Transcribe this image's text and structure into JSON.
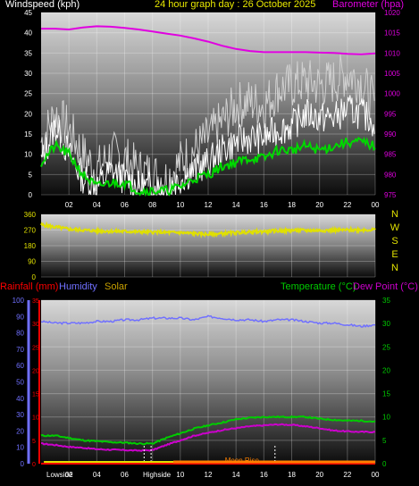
{
  "colors": {
    "wind": "#ffffff",
    "gust": "#d0d0d0",
    "avg_wind": "#00d800",
    "barometer": "#e000e0",
    "direction": "#e0e000",
    "rainfall": "#ff0000",
    "humidity": "#7070ff",
    "solar": "#c8a000",
    "temperature": "#00cc00",
    "dew_point": "#cc00cc",
    "moon": "#ff8000",
    "white_label": "#ffffff"
  },
  "header": {
    "wind_label": "Windspeed (kph)",
    "title": "24 hour graph day : 26 October 2025",
    "baro_label": "Barometer (hpa)"
  },
  "header3": {
    "rain_label": "Rainfall (mm)",
    "humidity_label": "Humidity",
    "solar_label": "Solar",
    "temp_label": "Temperature (°C)",
    "dew_label": "Dew Point (°C)"
  },
  "time_ticks": [
    "02",
    "04",
    "06",
    "08",
    "10",
    "12",
    "14",
    "16",
    "18",
    "20",
    "22",
    "00"
  ],
  "bottom_labels": {
    "lowside": "Lowside",
    "highside": "Highside",
    "moon_rise": "Moon Rise"
  },
  "chart_data": [
    {
      "type": "line",
      "title": "24 hour graph day : 26 October 2025",
      "x_hours": [
        0,
        1,
        2,
        3,
        4,
        5,
        6,
        7,
        8,
        9,
        10,
        11,
        12,
        13,
        14,
        15,
        16,
        17,
        18,
        19,
        20,
        21,
        22,
        23,
        24
      ],
      "left_axis": {
        "label": "Windspeed (kph)",
        "ylim": [
          0,
          45
        ],
        "ticks": [
          0,
          5,
          10,
          15,
          20,
          25,
          30,
          35,
          40,
          45
        ]
      },
      "right_axis": {
        "label": "Barometer (hpa)",
        "ylim": [
          975,
          1020
        ],
        "ticks": [
          975,
          980,
          985,
          990,
          995,
          1000,
          1005,
          1010,
          1015,
          1020
        ]
      },
      "series": [
        {
          "name": "Windspeed (kph)",
          "axis": "left",
          "values": [
            8,
            17,
            10,
            4,
            2,
            6,
            4,
            2,
            2,
            1,
            4,
            6,
            8,
            11,
            13,
            14,
            14,
            16,
            17,
            20,
            19,
            19,
            21,
            20,
            18
          ]
        },
        {
          "axis": "left",
          "values": [
            13,
            20,
            16,
            10,
            6,
            10,
            9,
            6,
            5,
            4,
            8,
            11,
            14,
            18,
            22,
            23,
            22,
            26,
            27,
            28,
            27,
            28,
            30,
            28,
            22
          ]
        },
        {
          "axis": "left",
          "values": [
            8,
            12,
            10,
            5,
            2,
            3,
            3,
            1,
            1,
            1,
            2,
            4,
            5,
            7,
            8,
            9,
            9,
            11,
            11,
            12,
            11,
            12,
            13,
            13,
            12
          ]
        },
        {
          "name": "Barometer (hpa)",
          "axis": "right",
          "values": [
            1016,
            1016,
            1015.8,
            1016.3,
            1016.6,
            1016.5,
            1016.2,
            1015.8,
            1015.3,
            1014.8,
            1014.3,
            1013.6,
            1012.8,
            1011.8,
            1011.0,
            1010.5,
            1010.2,
            1010.2,
            1010.2,
            1010.2,
            1010.1,
            1010.0,
            1009.8,
            1009.7,
            1009.9
          ]
        }
      ]
    },
    {
      "type": "line",
      "side_labels": [
        "N",
        "W",
        "S",
        "E",
        "N"
      ],
      "x_hours": [
        0,
        2,
        4,
        6,
        8,
        10,
        12,
        14,
        16,
        18,
        20,
        22,
        24
      ],
      "left_axis": {
        "ylim": [
          0,
          360
        ],
        "ticks": [
          0,
          90,
          180,
          270,
          360
        ]
      },
      "series": [
        {
          "axis": "left",
          "values": [
            300,
            275,
            265,
            262,
            258,
            255,
            245,
            255,
            262,
            268,
            268,
            270,
            272
          ]
        }
      ]
    },
    {
      "type": "line",
      "x_hours": [
        0,
        1,
        2,
        3,
        4,
        5,
        6,
        7,
        8,
        9,
        10,
        11,
        12,
        13,
        14,
        15,
        16,
        17,
        18,
        19,
        20,
        21,
        22,
        23,
        24
      ],
      "left_axis_humidity": {
        "ylim": [
          0,
          100
        ],
        "ticks": [
          0,
          10,
          20,
          30,
          40,
          50,
          60,
          70,
          80,
          90,
          100
        ]
      },
      "left_axis_rain": {
        "ylim": [
          0,
          35
        ],
        "ticks": [
          0,
          5,
          10,
          15,
          20,
          25,
          30,
          35
        ]
      },
      "right_axis": {
        "ylim": [
          0,
          35
        ],
        "ticks": [
          0,
          5,
          10,
          15,
          20,
          25,
          30,
          35
        ]
      },
      "series": [
        {
          "name": "Humidity",
          "axis": "humidity",
          "values": [
            87,
            86,
            86,
            86,
            87,
            87,
            88,
            88,
            89,
            89,
            89,
            88,
            90,
            89,
            88,
            88,
            87,
            88,
            88,
            87,
            86,
            86,
            85,
            84,
            85
          ]
        },
        {
          "name": "Temperature (°C)",
          "axis": "right",
          "values": [
            6,
            6,
            5.5,
            5,
            4.8,
            4.6,
            4.5,
            4.3,
            4.3,
            5.5,
            6.5,
            7.5,
            8.2,
            8.8,
            9.5,
            9.8,
            10,
            10,
            10,
            10,
            9.6,
            9.4,
            9.2,
            9.2,
            9
          ]
        },
        {
          "name": "Dew Point (°C)",
          "axis": "right",
          "values": [
            4.3,
            4,
            3.6,
            3.4,
            3.1,
            3,
            2.9,
            2.8,
            2.9,
            4,
            5,
            6,
            6.6,
            7.2,
            7.6,
            8,
            8.2,
            8.4,
            8.3,
            8,
            7.6,
            7.1,
            6.9,
            6.8,
            6.8
          ]
        },
        {
          "name": "Rainfall (mm)",
          "axis": "rain",
          "values": [
            0,
            0,
            0,
            0,
            0,
            0,
            0,
            0,
            0,
            0,
            0,
            0,
            0,
            0,
            0,
            0,
            0,
            0,
            0,
            0,
            0,
            0,
            0,
            0,
            0
          ]
        }
      ]
    }
  ]
}
